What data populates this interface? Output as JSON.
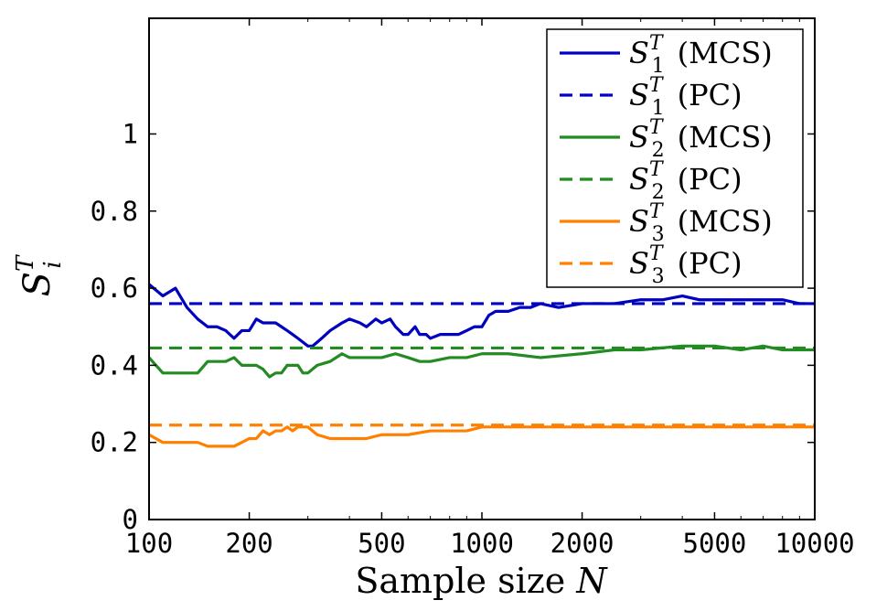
{
  "chart_data": {
    "type": "line",
    "xscale": "log",
    "xlim": [
      100,
      10000
    ],
    "ylim": [
      0,
      1.3
    ],
    "xticks": [
      100,
      200,
      500,
      1000,
      2000,
      5000,
      10000
    ],
    "xtick_labels": [
      "100",
      "200",
      "500",
      "1000",
      "2000",
      "5000",
      "10000"
    ],
    "yticks": [
      0,
      0.2,
      0.4,
      0.6,
      0.8,
      1
    ],
    "ytick_labels": [
      "0",
      "0.2",
      "0.4",
      "0.6",
      "0.8",
      "1"
    ],
    "xlabel": "Sample size N",
    "ylabel": "S_i^T",
    "legend_position": "top-right",
    "series": [
      {
        "name": "S_1^T (MCS)",
        "label_base": "S",
        "label_sup": "T",
        "label_sub": "1",
        "label_suffix": "(MCS)",
        "color": "#0000c0",
        "style": "solid",
        "x": [
          100,
          110,
          120,
          130,
          140,
          150,
          160,
          170,
          180,
          190,
          200,
          210,
          220,
          230,
          240,
          250,
          260,
          270,
          280,
          290,
          300,
          310,
          320,
          330,
          350,
          380,
          400,
          430,
          450,
          480,
          500,
          530,
          550,
          580,
          600,
          630,
          650,
          680,
          700,
          750,
          800,
          850,
          900,
          950,
          1000,
          1050,
          1100,
          1200,
          1300,
          1400,
          1500,
          1700,
          2000,
          2500,
          3000,
          3500,
          4000,
          4500,
          5000,
          6000,
          7000,
          8000,
          9000,
          10000
        ],
        "y": [
          0.61,
          0.58,
          0.6,
          0.55,
          0.52,
          0.5,
          0.5,
          0.49,
          0.47,
          0.49,
          0.49,
          0.52,
          0.51,
          0.51,
          0.51,
          0.5,
          0.49,
          0.48,
          0.47,
          0.46,
          0.45,
          0.45,
          0.46,
          0.47,
          0.49,
          0.51,
          0.52,
          0.51,
          0.5,
          0.52,
          0.51,
          0.52,
          0.5,
          0.48,
          0.48,
          0.5,
          0.48,
          0.48,
          0.47,
          0.48,
          0.48,
          0.48,
          0.49,
          0.5,
          0.5,
          0.53,
          0.54,
          0.54,
          0.55,
          0.55,
          0.56,
          0.55,
          0.56,
          0.56,
          0.57,
          0.57,
          0.58,
          0.57,
          0.57,
          0.57,
          0.57,
          0.57,
          0.56,
          0.56
        ]
      },
      {
        "name": "S_1^T (PC)",
        "label_base": "S",
        "label_sup": "T",
        "label_sub": "1",
        "label_suffix": "(PC)",
        "color": "#0000c0",
        "style": "dashed",
        "x": [
          100,
          10000
        ],
        "y": [
          0.56,
          0.56
        ]
      },
      {
        "name": "S_2^T (MCS)",
        "label_base": "S",
        "label_sup": "T",
        "label_sub": "2",
        "label_suffix": "(MCS)",
        "color": "#228b22",
        "style": "solid",
        "x": [
          100,
          110,
          120,
          130,
          140,
          150,
          160,
          170,
          180,
          190,
          200,
          210,
          220,
          230,
          240,
          250,
          260,
          270,
          280,
          290,
          300,
          320,
          350,
          380,
          400,
          450,
          500,
          550,
          600,
          650,
          700,
          800,
          900,
          1000,
          1200,
          1500,
          2000,
          2500,
          3000,
          4000,
          5000,
          6000,
          7000,
          8000,
          10000
        ],
        "y": [
          0.42,
          0.38,
          0.38,
          0.38,
          0.38,
          0.41,
          0.41,
          0.41,
          0.42,
          0.4,
          0.4,
          0.4,
          0.39,
          0.37,
          0.38,
          0.38,
          0.4,
          0.4,
          0.4,
          0.38,
          0.38,
          0.4,
          0.41,
          0.43,
          0.42,
          0.42,
          0.42,
          0.43,
          0.42,
          0.41,
          0.41,
          0.42,
          0.42,
          0.43,
          0.43,
          0.42,
          0.43,
          0.44,
          0.44,
          0.45,
          0.45,
          0.44,
          0.45,
          0.44,
          0.44
        ]
      },
      {
        "name": "S_2^T (PC)",
        "label_base": "S",
        "label_sup": "T",
        "label_sub": "2",
        "label_suffix": "(PC)",
        "color": "#228b22",
        "style": "dashed",
        "x": [
          100,
          10000
        ],
        "y": [
          0.445,
          0.445
        ]
      },
      {
        "name": "S_3^T (MCS)",
        "label_base": "S",
        "label_sup": "T",
        "label_sub": "3",
        "label_suffix": "(MCS)",
        "color": "#ff8000",
        "style": "solid",
        "x": [
          100,
          110,
          120,
          130,
          140,
          150,
          160,
          170,
          180,
          190,
          200,
          210,
          220,
          230,
          240,
          250,
          260,
          270,
          280,
          290,
          300,
          320,
          350,
          380,
          400,
          450,
          500,
          550,
          600,
          700,
          800,
          900,
          1000,
          1200,
          1500,
          2000,
          3000,
          4000,
          5000,
          6000,
          8000,
          10000
        ],
        "y": [
          0.22,
          0.2,
          0.2,
          0.2,
          0.2,
          0.19,
          0.19,
          0.19,
          0.19,
          0.2,
          0.21,
          0.21,
          0.23,
          0.22,
          0.23,
          0.23,
          0.24,
          0.23,
          0.24,
          0.24,
          0.24,
          0.22,
          0.21,
          0.21,
          0.21,
          0.21,
          0.22,
          0.22,
          0.22,
          0.23,
          0.23,
          0.23,
          0.24,
          0.24,
          0.24,
          0.24,
          0.24,
          0.24,
          0.24,
          0.24,
          0.24,
          0.24
        ]
      },
      {
        "name": "S_3^T (PC)",
        "label_base": "S",
        "label_sup": "T",
        "label_sub": "3",
        "label_suffix": "(PC)",
        "color": "#ff8000",
        "style": "dashed",
        "x": [
          100,
          10000
        ],
        "y": [
          0.245,
          0.245
        ]
      }
    ]
  }
}
